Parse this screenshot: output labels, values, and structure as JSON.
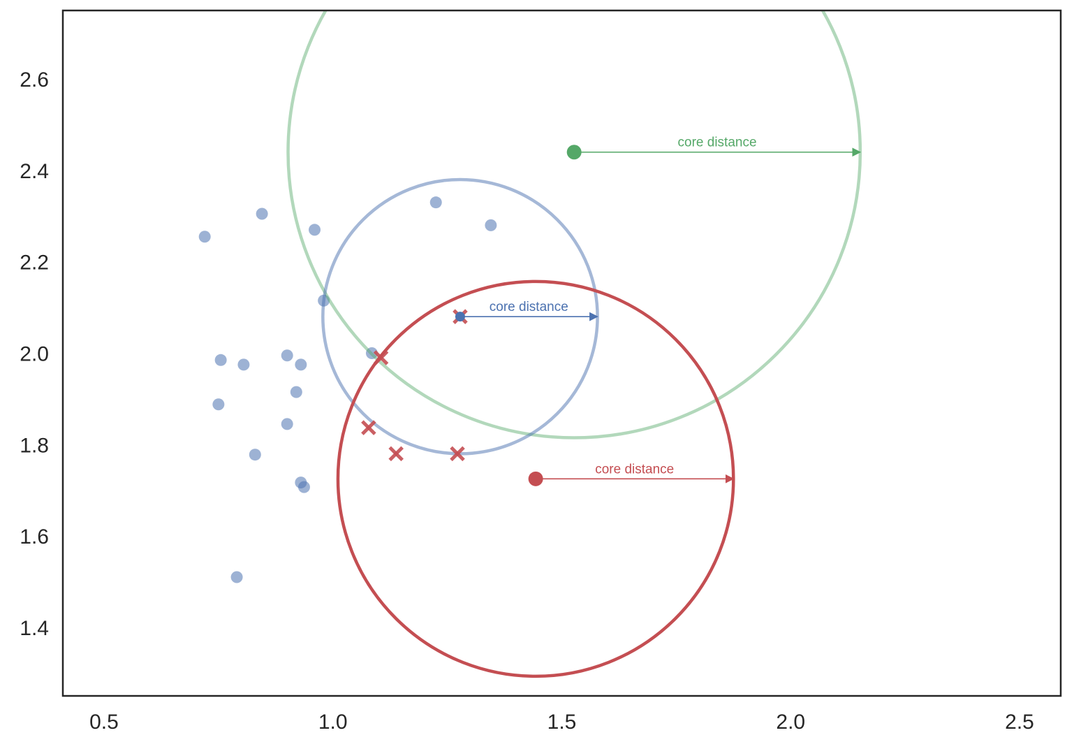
{
  "chart_data": {
    "type": "scatter",
    "title": "",
    "xlabel": "",
    "ylabel": "",
    "xlim": [
      0.41,
      2.59
    ],
    "ylim": [
      1.25,
      2.75
    ],
    "x_ticks": [
      "0.5",
      "1.0",
      "1.5",
      "2.0",
      "2.5"
    ],
    "y_ticks": [
      "1.4",
      "1.6",
      "1.8",
      "2.0",
      "2.2",
      "2.4",
      "2.6"
    ],
    "grid": false,
    "colors": {
      "points": "#4c72b0",
      "blue": "#4c72b0",
      "green": "#55a868",
      "red": "#c44e52",
      "axes": "#262626"
    },
    "points": [
      {
        "x": 0.72,
        "y": 2.255
      },
      {
        "x": 0.845,
        "y": 2.305
      },
      {
        "x": 0.96,
        "y": 2.27
      },
      {
        "x": 1.225,
        "y": 2.33
      },
      {
        "x": 1.345,
        "y": 2.28
      },
      {
        "x": 0.98,
        "y": 2.115
      },
      {
        "x": 1.085,
        "y": 2.0
      },
      {
        "x": 0.755,
        "y": 1.985
      },
      {
        "x": 0.805,
        "y": 1.975
      },
      {
        "x": 0.9,
        "y": 1.995
      },
      {
        "x": 0.93,
        "y": 1.975
      },
      {
        "x": 0.92,
        "y": 1.915
      },
      {
        "x": 0.75,
        "y": 1.888
      },
      {
        "x": 0.9,
        "y": 1.845
      },
      {
        "x": 0.83,
        "y": 1.778
      },
      {
        "x": 0.93,
        "y": 1.717
      },
      {
        "x": 0.937,
        "y": 1.707
      },
      {
        "x": 0.79,
        "y": 1.51
      }
    ],
    "highlighted": [
      {
        "x": 1.278,
        "y": 2.08
      },
      {
        "x": 1.078,
        "y": 1.837
      },
      {
        "x": 1.138,
        "y": 1.78
      },
      {
        "x": 1.272,
        "y": 1.78
      },
      {
        "x": 1.105,
        "y": 1.99
      }
    ],
    "core_points": [
      {
        "name": "green",
        "x": 1.527,
        "y": 2.44,
        "radius": 0.625,
        "label": "core distance"
      },
      {
        "name": "blue",
        "x": 1.278,
        "y": 2.08,
        "radius": 0.3,
        "label": "core distance"
      },
      {
        "name": "red",
        "x": 1.443,
        "y": 1.725,
        "radius": 0.432,
        "label": "core distance"
      }
    ]
  }
}
